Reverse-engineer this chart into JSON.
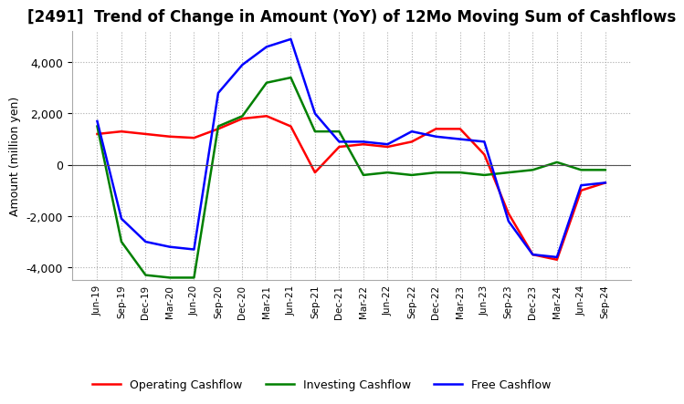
{
  "title": "[2491]  Trend of Change in Amount (YoY) of 12Mo Moving Sum of Cashflows",
  "ylabel": "Amount (million yen)",
  "ylim": [
    -4500,
    5200
  ],
  "yticks": [
    -4000,
    -2000,
    0,
    2000,
    4000
  ],
  "x_labels": [
    "Jun-19",
    "Sep-19",
    "Dec-19",
    "Mar-20",
    "Jun-20",
    "Sep-20",
    "Dec-20",
    "Mar-21",
    "Jun-21",
    "Sep-21",
    "Dec-21",
    "Mar-22",
    "Jun-22",
    "Sep-22",
    "Dec-22",
    "Mar-23",
    "Jun-23",
    "Sep-23",
    "Dec-23",
    "Mar-24",
    "Jun-24",
    "Sep-24"
  ],
  "operating": [
    1200,
    1300,
    1200,
    1100,
    1050,
    1400,
    1800,
    1900,
    1500,
    -300,
    700,
    800,
    700,
    900,
    1400,
    1400,
    400,
    -1900,
    -3500,
    -3700,
    -1000,
    -700
  ],
  "investing": [
    1500,
    -3000,
    -4300,
    -4400,
    -4400,
    1500,
    1900,
    3200,
    3400,
    1300,
    1300,
    -400,
    -300,
    -400,
    -300,
    -300,
    -400,
    -300,
    -200,
    100,
    -200,
    -200
  ],
  "free": [
    1700,
    -2100,
    -3000,
    -3200,
    -3300,
    2800,
    3900,
    4600,
    4900,
    2000,
    900,
    900,
    800,
    1300,
    1100,
    1000,
    900,
    -2200,
    -3500,
    -3600,
    -800,
    -700
  ],
  "operating_color": "#ff0000",
  "investing_color": "#008000",
  "free_color": "#0000ff",
  "background_color": "#ffffff",
  "grid_color": "#aaaaaa",
  "title_fontsize": 12,
  "legend_labels": [
    "Operating Cashflow",
    "Investing Cashflow",
    "Free Cashflow"
  ]
}
